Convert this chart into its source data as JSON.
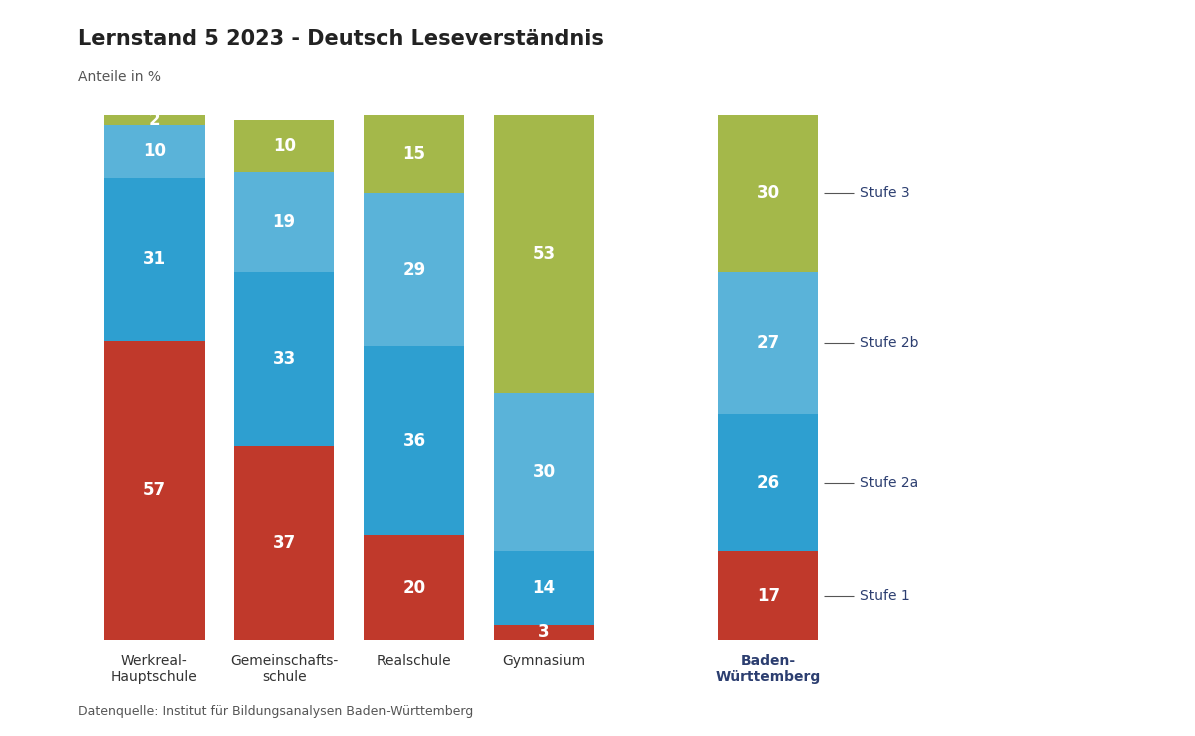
{
  "title": "Lernstand 5 2023 - Deutsch Leseverständnis",
  "subtitle": "Anteile in %",
  "source": "Datenquelle: Institut für Bildungsanalysen Baden-Württemberg",
  "categories": [
    "Werkreal-\nHauptschule",
    "Gemeinschafts-\nschule",
    "Realschule",
    "Gymnasium",
    "Baden-\nWürttemberg"
  ],
  "segments": {
    "Stufe 1": [
      57,
      37,
      20,
      3,
      17
    ],
    "Stufe 2a": [
      31,
      33,
      36,
      14,
      26
    ],
    "Stufe 2b": [
      10,
      19,
      29,
      30,
      27
    ],
    "Stufe 3": [
      2,
      10,
      15,
      53,
      30
    ]
  },
  "colors": {
    "Stufe 1": "#c0392b",
    "Stufe 2a": "#2e9fd0",
    "Stufe 2b": "#5ab3d9",
    "Stufe 3": "#a4b84a"
  },
  "x_positions": [
    0,
    1.1,
    2.2,
    3.3,
    5.2
  ],
  "bar_width": 0.85,
  "background_color": "#ffffff",
  "text_color_white": "#ffffff",
  "text_color_dark": "#2c3e70",
  "title_fontsize": 15,
  "subtitle_fontsize": 10,
  "label_fontsize": 12,
  "tick_fontsize": 10,
  "source_fontsize": 9,
  "legend_fontsize": 10,
  "legend_line_color": "#555555"
}
